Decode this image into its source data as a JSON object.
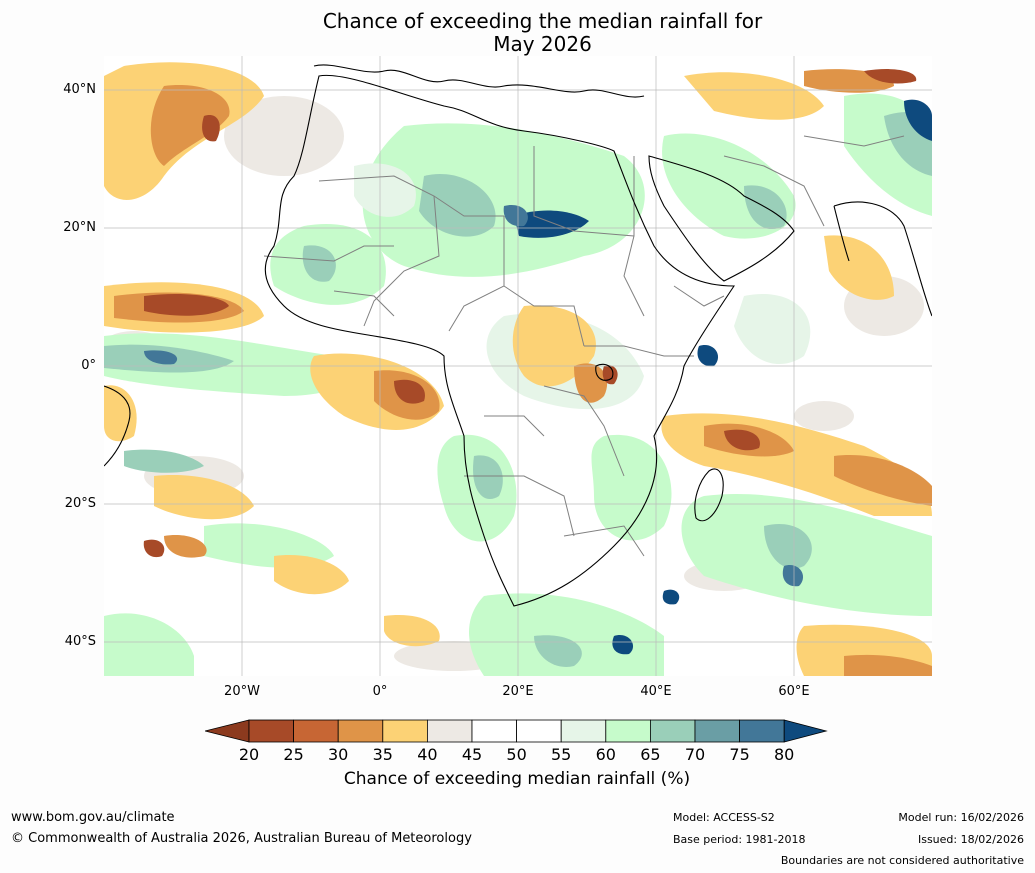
{
  "title": {
    "line1": "Chance of exceeding the median rainfall for",
    "line2": "May 2026"
  },
  "map": {
    "lat_labels": [
      "40°N",
      "20°N",
      "0°",
      "20°S",
      "40°S"
    ],
    "lon_labels": [
      "20°W",
      "0°",
      "20°E",
      "40°E",
      "60°E"
    ]
  },
  "colorbar": {
    "ticks": [
      "20",
      "25",
      "30",
      "35",
      "40",
      "45",
      "50",
      "55",
      "60",
      "65",
      "70",
      "75",
      "80"
    ],
    "colors": [
      "#8c3a1e",
      "#a74a28",
      "#c76634",
      "#df9448",
      "#fcd275",
      "#ede9e4",
      "#ffffff",
      "#ffffff",
      "#e6f5e8",
      "#c6fbcb",
      "#9acfb9",
      "#6a9ea5",
      "#427798",
      "#0e4a7e"
    ],
    "title": "Chance of exceeding median rainfall (%)"
  },
  "footer": {
    "website": "www.bom.gov.au/climate",
    "copyright": "© Commonwealth of Australia 2026, Australian Bureau of Meteorology",
    "model": "Model: ACCESS-S2",
    "base_period": "Base period: 1981-2018",
    "model_run": "Model run: 16/02/2026",
    "issued": "Issued: 18/02/2026",
    "disclaimer": "Boundaries are not considered authoritative"
  }
}
